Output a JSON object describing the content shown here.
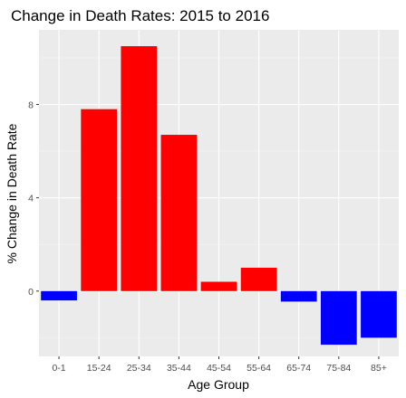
{
  "chart_data": {
    "type": "bar",
    "title": "Change in Death Rates: 2015 to 2016",
    "xlabel": "Age Group",
    "ylabel": "% Change in Death Rate",
    "categories": [
      "0-1",
      "15-24",
      "25-34",
      "35-44",
      "45-54",
      "55-64",
      "65-74",
      "75-84",
      "85+"
    ],
    "values": [
      -0.4,
      7.8,
      10.5,
      6.7,
      0.4,
      1.0,
      -0.45,
      -2.3,
      -2.0
    ],
    "ylim": [
      -2.8,
      11.2
    ],
    "yticks": [
      0,
      4,
      8
    ],
    "colors": {
      "positive": "#ff0000",
      "negative": "#0000ff",
      "panel": "#ebebeb",
      "grid": "#ffffff"
    },
    "grid": true,
    "legend": "none"
  }
}
